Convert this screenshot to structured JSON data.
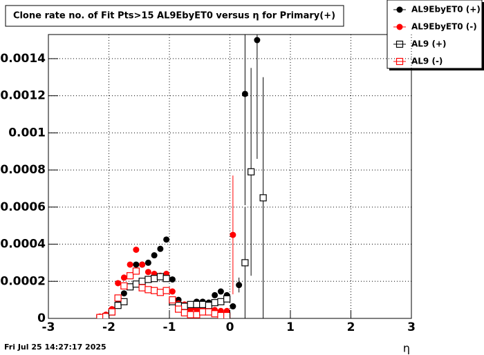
{
  "chart_data": {
    "type": "scatter",
    "title": "Clone rate no. of Fit Pts>15 AL9EbyET0 versus η for Primary(+)",
    "x_label": "η",
    "timestamp": "Fri Jul 25 14:27:17 2025",
    "xlim": [
      -3,
      3
    ],
    "xticks": [
      -3,
      -2,
      -1,
      0,
      1,
      2,
      3
    ],
    "ylim": [
      0,
      0.00153
    ],
    "yticks": [
      0,
      0.0002,
      0.0004,
      0.0006,
      0.0008,
      0.001,
      0.0012,
      0.0014
    ],
    "grid": true,
    "legend_position": "top-right",
    "series": [
      {
        "name": "AL9EbyET0 (+)",
        "color": "#000000",
        "marker": "circle",
        "x": [
          -2.15,
          -2.05,
          -1.95,
          -1.85,
          -1.75,
          -1.65,
          -1.55,
          -1.45,
          -1.35,
          -1.25,
          -1.15,
          -1.05,
          -0.95,
          -0.85,
          -0.75,
          -0.65,
          -0.55,
          -0.45,
          -0.35,
          -0.25,
          -0.15,
          -0.05,
          0.05,
          0.15,
          0.25,
          0.45
        ],
        "values": [
          0,
          1.5e-05,
          4.5e-05,
          8e-05,
          0.000135,
          0.00023,
          0.00029,
          0.00029,
          0.0003,
          0.00034,
          0.000375,
          0.000425,
          0.00021,
          0.0001,
          7e-05,
          7e-05,
          9e-05,
          9e-05,
          8.5e-05,
          0.000125,
          0.000145,
          0.000125,
          6.5e-05,
          0.00018,
          0.00121,
          0.0015
        ],
        "errors": [
          null,
          null,
          null,
          null,
          null,
          null,
          null,
          null,
          null,
          null,
          null,
          null,
          null,
          null,
          null,
          null,
          null,
          null,
          null,
          null,
          null,
          null,
          null,
          4e-05,
          0.0006,
          0.00064
        ]
      },
      {
        "name": "AL9EbyET0 (-)",
        "color": "#ff0000",
        "marker": "circle",
        "x": [
          -2.15,
          -2.05,
          -1.95,
          -1.85,
          -1.75,
          -1.65,
          -1.55,
          -1.45,
          -1.35,
          -1.25,
          -1.15,
          -1.05,
          -0.95,
          -0.85,
          -0.75,
          -0.65,
          -0.55,
          -0.45,
          -0.35,
          -0.25,
          -0.15,
          -0.05,
          0.05
        ],
        "values": [
          1e-05,
          2e-05,
          5e-05,
          0.00019,
          0.00022,
          0.00029,
          0.00037,
          0.00029,
          0.00025,
          0.00024,
          0.00023,
          0.00024,
          0.000145,
          8e-05,
          7.5e-05,
          5e-05,
          5e-05,
          6e-05,
          6.5e-05,
          4.5e-05,
          4e-05,
          4e-05,
          0.00045
        ],
        "errors": [
          null,
          null,
          null,
          null,
          null,
          null,
          null,
          null,
          null,
          null,
          null,
          null,
          null,
          null,
          null,
          null,
          null,
          null,
          null,
          null,
          null,
          null,
          0.00032
        ]
      },
      {
        "name": "AL9 (+)",
        "color": "#000000",
        "marker": "open-square",
        "x": [
          -2.15,
          -2.05,
          -1.95,
          -1.85,
          -1.75,
          -1.65,
          -1.55,
          -1.45,
          -1.35,
          -1.25,
          -1.15,
          -1.05,
          -0.95,
          -0.85,
          -0.75,
          -0.65,
          -0.55,
          -0.45,
          -0.35,
          -0.25,
          -0.15,
          -0.05,
          0.25,
          0.35,
          0.55
        ],
        "values": [
          0,
          1e-05,
          3.5e-05,
          7e-05,
          9e-05,
          0.00017,
          0.000185,
          0.0002,
          0.00021,
          0.000215,
          0.000225,
          0.000215,
          9e-05,
          7e-05,
          6.5e-05,
          7.5e-05,
          7.5e-05,
          7.5e-05,
          7e-05,
          8.5e-05,
          9e-05,
          0.000105,
          0.0003,
          0.00079,
          0.00065
        ],
        "errors": [
          null,
          null,
          null,
          null,
          null,
          null,
          null,
          null,
          null,
          null,
          null,
          null,
          null,
          null,
          null,
          null,
          null,
          null,
          null,
          null,
          null,
          null,
          0.0003,
          0.00056,
          0.00065
        ]
      },
      {
        "name": "AL9 (-)",
        "color": "#ff0000",
        "marker": "open-square",
        "x": [
          -2.15,
          -2.05,
          -1.95,
          -1.85,
          -1.75,
          -1.65,
          -1.55,
          -1.45,
          -1.35,
          -1.25,
          -1.15,
          -1.05,
          -0.95,
          -0.85,
          -0.75,
          -0.65,
          -0.55,
          -0.45,
          -0.35,
          -0.25,
          -0.15,
          -0.05
        ],
        "values": [
          5e-06,
          1e-05,
          3.5e-05,
          0.00011,
          0.000175,
          0.00023,
          0.000255,
          0.000165,
          0.000155,
          0.00015,
          0.00014,
          0.00015,
          0.0001,
          5e-05,
          3e-05,
          2e-05,
          2e-05,
          3.5e-05,
          3.5e-05,
          2.5e-05,
          1.5e-05,
          1.5e-05
        ],
        "errors": [
          null,
          null,
          null,
          null,
          null,
          null,
          null,
          null,
          null,
          null,
          null,
          null,
          null,
          null,
          null,
          null,
          null,
          null,
          null,
          null,
          null,
          null
        ]
      }
    ]
  }
}
